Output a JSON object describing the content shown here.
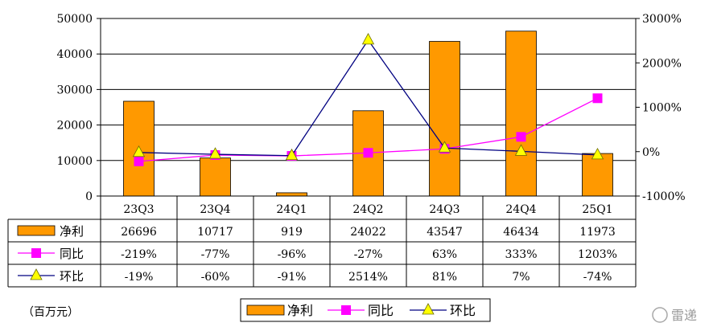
{
  "chart_data": {
    "type": "bar",
    "categories": [
      "23Q3",
      "23Q4",
      "24Q1",
      "24Q2",
      "24Q3",
      "24Q4",
      "25Q1"
    ],
    "series": [
      {
        "name": "净利",
        "kind": "bar",
        "axis": "left",
        "values": [
          26696,
          10717,
          919,
          24022,
          43547,
          46434,
          11973
        ],
        "labels": [
          "26696",
          "10717",
          "919",
          "24022",
          "43547",
          "46434",
          "11973"
        ],
        "color": "#FF9900"
      },
      {
        "name": "同比",
        "kind": "line",
        "axis": "right",
        "values": [
          -219,
          -77,
          -96,
          -27,
          63,
          333,
          1203
        ],
        "labels": [
          "-219%",
          "-77%",
          "-96%",
          "-27%",
          "63%",
          "333%",
          "1203%"
        ],
        "color": "#FF00FF",
        "marker": "square"
      },
      {
        "name": "环比",
        "kind": "line",
        "axis": "right",
        "values": [
          -19,
          -60,
          -91,
          2514,
          81,
          7,
          -74
        ],
        "labels": [
          "-19%",
          "-60%",
          "-91%",
          "2514%",
          "81%",
          "7%",
          "-74%"
        ],
        "color": "#000080",
        "marker": "triangle",
        "marker_color": "#FFFF00"
      }
    ],
    "y_left": {
      "lim": [
        0,
        50000
      ],
      "ticks": [
        0,
        10000,
        20000,
        30000,
        40000,
        50000
      ],
      "tick_labels": [
        "0",
        "10000",
        "20000",
        "30000",
        "40000",
        "50000"
      ]
    },
    "y_right": {
      "lim": [
        -1000,
        3000
      ],
      "ticks": [
        -1000,
        0,
        1000,
        2000,
        3000
      ],
      "tick_labels": [
        "-1000%",
        "0%",
        "1000%",
        "2000%",
        "3000%"
      ]
    },
    "grid": true,
    "legend": "bottom",
    "data_table": true
  },
  "unit_label": "（百万元）",
  "watermark": "雷递"
}
